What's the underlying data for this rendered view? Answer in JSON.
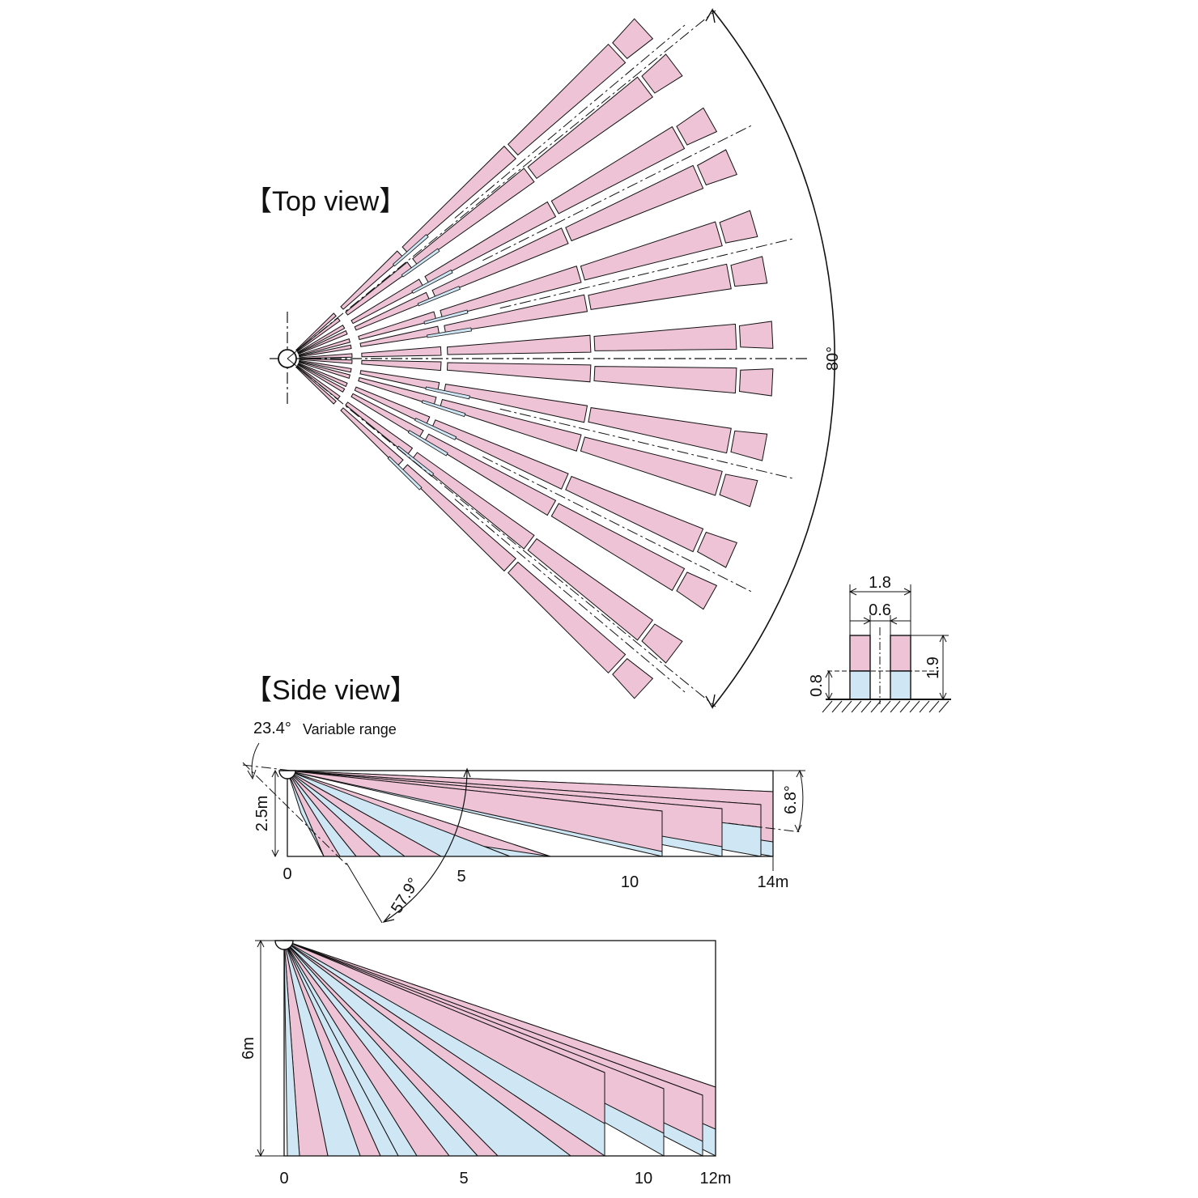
{
  "titles": {
    "top": "【Top view】",
    "side": "【Side view】"
  },
  "colors": {
    "pink": "#efc3d6",
    "blue": "#cfe6f4",
    "line": "#111111"
  },
  "top_view": {
    "fan_angle_label": "80°",
    "fan_angle_deg": 80,
    "beam_pairs": 7
  },
  "target_figure": {
    "width_label": "1.8",
    "gap_label": "0.6",
    "height_label": "1.9",
    "lower_label": "0.8"
  },
  "side_view_1": {
    "tilt_label": "23.4°",
    "variable_range_label": "Variable range",
    "height_label": "2.5m",
    "spread_label": "6.8°",
    "angle_label": "57.9°",
    "ticks": [
      "0",
      "5",
      "10",
      "14m"
    ],
    "max_distance_m": 14,
    "mount_height_m": 2.5
  },
  "side_view_2": {
    "height_label": "6m",
    "ticks": [
      "0",
      "5",
      "10",
      "12m"
    ],
    "max_distance_m": 12,
    "mount_height_m": 6
  }
}
